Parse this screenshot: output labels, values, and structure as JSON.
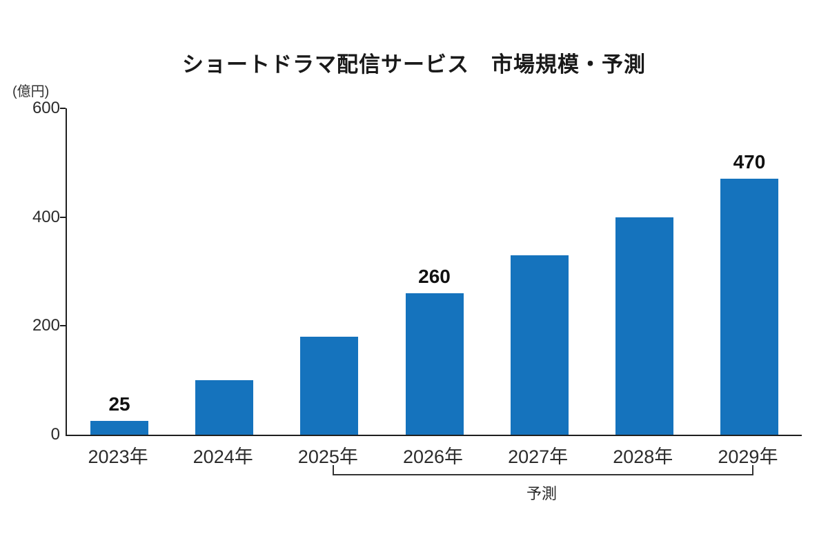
{
  "chart": {
    "title": "ショートドラマ配信サービス　市場規模・予測",
    "unit_label": "(億円)",
    "forecast_label": "予測"
  },
  "chart_data": {
    "type": "bar",
    "title": "ショートドラマ配信サービス　市場規模・予測",
    "xlabel": "",
    "ylabel": "(億円)",
    "categories": [
      "2023年",
      "2024年",
      "2025年",
      "2026年",
      "2027年",
      "2028年",
      "2029年"
    ],
    "values": [
      25,
      100,
      180,
      260,
      330,
      400,
      470
    ],
    "data_labels": [
      "25",
      null,
      null,
      "260",
      null,
      null,
      "470"
    ],
    "ylim": [
      0,
      600
    ],
    "yticks": [
      0,
      200,
      400,
      600
    ],
    "grid": false,
    "legend": "none",
    "bar_color": "#1573bd",
    "axis_color": "#1f1f1f",
    "annotation": {
      "label": "予測",
      "applies_to_categories": [
        "2025年",
        "2026年",
        "2027年",
        "2028年",
        "2029年"
      ]
    }
  }
}
